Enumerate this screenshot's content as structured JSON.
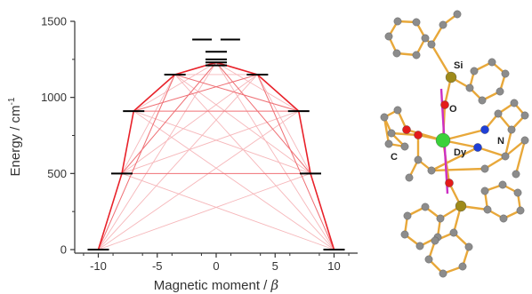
{
  "chart_data": {
    "type": "line",
    "xlabel_text": "Magnetic moment / ",
    "xlabel_symbol": "β",
    "ylabel_main": "Energy / cm",
    "ylabel_sup": "-1",
    "xlim": [
      -12,
      12
    ],
    "ylim": [
      0,
      1500
    ],
    "xticks": [
      -10,
      -5,
      0,
      5,
      10
    ],
    "yticks": [
      0,
      500,
      1000,
      1500
    ],
    "xtick_labels": [
      "-10",
      "-5",
      "0",
      "5",
      "10"
    ],
    "ytick_labels": [
      "0",
      "500",
      "1000",
      "1500"
    ],
    "grid": false,
    "energy_levels": [
      {
        "x": -10,
        "y": 0
      },
      {
        "x": 10,
        "y": 0
      },
      {
        "x": -8,
        "y": 500
      },
      {
        "x": 8,
        "y": 500
      },
      {
        "x": -7,
        "y": 910
      },
      {
        "x": 7,
        "y": 910
      },
      {
        "x": -3.5,
        "y": 1150
      },
      {
        "x": 3.5,
        "y": 1150
      },
      {
        "x": 0,
        "y": 1210
      },
      {
        "x": 0,
        "y": 1230
      },
      {
        "x": 0,
        "y": 1250
      },
      {
        "x": 0,
        "y": 1300
      },
      {
        "x": -1.2,
        "y": 1380
      },
      {
        "x": 1.2,
        "y": 1380
      }
    ],
    "relaxation_path": [
      {
        "x": -10,
        "y": 0
      },
      {
        "x": -8,
        "y": 500
      },
      {
        "x": -7,
        "y": 910
      },
      {
        "x": -3.5,
        "y": 1150
      },
      {
        "x": 0,
        "y": 1230
      },
      {
        "x": 3.5,
        "y": 1150
      },
      {
        "x": 7,
        "y": 910
      },
      {
        "x": 8,
        "y": 500
      },
      {
        "x": 10,
        "y": 0
      }
    ],
    "strong_transitions": [
      [
        [
          -10,
          0
        ],
        [
          -3.5,
          1150
        ]
      ],
      [
        [
          -8,
          500
        ],
        [
          0,
          1230
        ]
      ],
      [
        [
          -7,
          910
        ],
        [
          3.5,
          1150
        ]
      ],
      [
        [
          3.5,
          1150
        ],
        [
          10,
          0
        ]
      ],
      [
        [
          0,
          1230
        ],
        [
          8,
          500
        ]
      ],
      [
        [
          -3.5,
          1150
        ],
        [
          7,
          910
        ]
      ],
      [
        [
          -7,
          910
        ],
        [
          7,
          910
        ]
      ],
      [
        [
          -8,
          500
        ],
        [
          8,
          500
        ]
      ]
    ],
    "weak_transitions": [
      [
        [
          -10,
          0
        ],
        [
          0,
          1230
        ]
      ],
      [
        [
          -10,
          0
        ],
        [
          3.5,
          1150
        ]
      ],
      [
        [
          -10,
          0
        ],
        [
          7,
          910
        ]
      ],
      [
        [
          -10,
          0
        ],
        [
          8,
          500
        ]
      ],
      [
        [
          -8,
          500
        ],
        [
          -3.5,
          1150
        ]
      ],
      [
        [
          -8,
          500
        ],
        [
          3.5,
          1150
        ]
      ],
      [
        [
          -8,
          500
        ],
        [
          7,
          910
        ]
      ],
      [
        [
          -8,
          500
        ],
        [
          10,
          0
        ]
      ],
      [
        [
          -7,
          910
        ],
        [
          0,
          1230
        ]
      ],
      [
        [
          -7,
          910
        ],
        [
          8,
          500
        ]
      ],
      [
        [
          -7,
          910
        ],
        [
          10,
          0
        ]
      ],
      [
        [
          -3.5,
          1150
        ],
        [
          8,
          500
        ]
      ],
      [
        [
          -3.5,
          1150
        ],
        [
          10,
          0
        ]
      ],
      [
        [
          0,
          1230
        ],
        [
          7,
          910
        ]
      ],
      [
        [
          0,
          1230
        ],
        [
          10,
          0
        ]
      ],
      [
        [
          -3.5,
          1150
        ],
        [
          3.5,
          1150
        ]
      ],
      [
        [
          3.5,
          1150
        ],
        [
          8,
          500
        ]
      ],
      [
        [
          -7,
          910
        ],
        [
          -3.5,
          1150
        ]
      ]
    ],
    "colors": {
      "path": "#e8222a",
      "strong": "#ef6f74",
      "weak": "#f6b7ba",
      "level": "#000000",
      "axis": "#333333"
    }
  },
  "molecule": {
    "labels": {
      "si": "Si",
      "o_top": "O",
      "n": "N",
      "c": "C",
      "dy": "Dy"
    },
    "colors": {
      "bond": "#e8a83a",
      "carbon": "#8c8c8c",
      "si": "#9e8a1a",
      "oxygen": "#e31b1b",
      "nitrogen": "#1f3fd6",
      "dy": "#3ad13a",
      "axis": "#cc2fc4"
    }
  }
}
